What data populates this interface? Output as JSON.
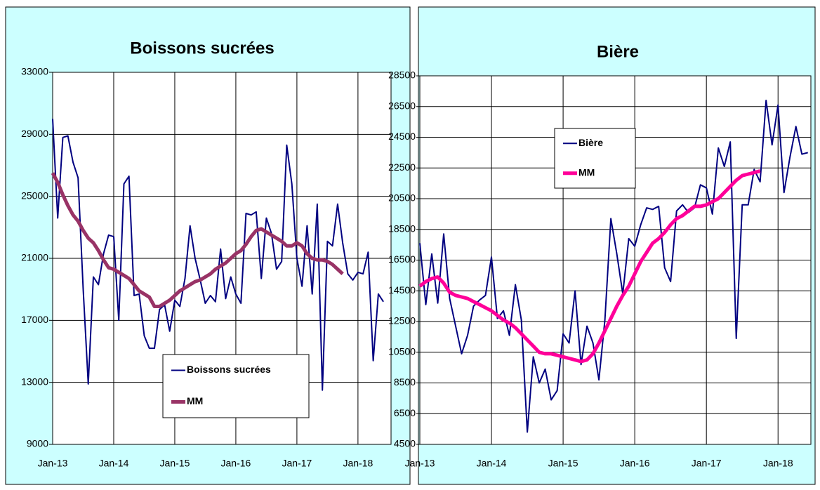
{
  "chart_data": [
    {
      "type": "line",
      "title": "Boissons sucrées",
      "categories": [
        "Jan-13",
        null,
        null,
        null,
        null,
        null,
        null,
        null,
        null,
        null,
        null,
        null,
        "Jan-14",
        null,
        null,
        null,
        null,
        null,
        null,
        null,
        null,
        null,
        null,
        null,
        "Jan-15",
        null,
        null,
        null,
        null,
        null,
        null,
        null,
        null,
        null,
        null,
        null,
        "Jan-16",
        null,
        null,
        null,
        null,
        null,
        null,
        null,
        null,
        null,
        null,
        null,
        "Jan-17",
        null,
        null,
        null,
        null,
        null,
        null,
        null,
        null,
        null,
        null,
        null,
        "Jan-18",
        null,
        null,
        null,
        null,
        null
      ],
      "series": [
        {
          "name": "Boissons sucrées",
          "color": "#000080",
          "values": [
            30000,
            23600,
            28800,
            28900,
            27200,
            26200,
            19000,
            12900,
            19800,
            19300,
            21300,
            22500,
            22400,
            17000,
            25800,
            26300,
            18600,
            18700,
            16000,
            15200,
            15200,
            17700,
            18000,
            16300,
            18300,
            17900,
            19700,
            23100,
            21000,
            19600,
            18100,
            18600,
            18200,
            21600,
            18400,
            19800,
            18700,
            18100,
            23900,
            23800,
            24000,
            19700,
            23600,
            22600,
            20300,
            20800,
            28300,
            25800,
            21000,
            19200,
            23100,
            18700,
            24500,
            12500,
            22100,
            21800,
            24500,
            22000,
            20000,
            19600,
            20100,
            20000,
            21400,
            14400,
            18700,
            18200
          ]
        },
        {
          "name": "MM",
          "color": "#993366",
          "values": [
            26500,
            25900,
            25100,
            24400,
            23800,
            23400,
            22800,
            22300,
            22000,
            21500,
            20900,
            20400,
            20300,
            20100,
            19900,
            19700,
            19300,
            18900,
            18700,
            18500,
            17900,
            17900,
            18100,
            18300,
            18600,
            18900,
            19100,
            19300,
            19500,
            19600,
            19800,
            20000,
            20300,
            20500,
            20700,
            21000,
            21300,
            21500,
            21900,
            22400,
            22800,
            22900,
            22700,
            22500,
            22300,
            22100,
            21800,
            21800,
            22000,
            21800,
            21300,
            21000,
            20900,
            20900,
            20800,
            20600,
            20300,
            20000,
            null,
            null,
            null,
            null,
            null,
            null,
            null,
            null
          ]
        }
      ],
      "ylim": [
        9000,
        33000
      ],
      "yticks": [
        9000,
        13000,
        17000,
        21000,
        25000,
        29000,
        33000
      ],
      "grid": true,
      "legend": "lower center"
    },
    {
      "type": "line",
      "title": "Bière",
      "categories": [
        "Jan-13",
        null,
        null,
        null,
        null,
        null,
        null,
        null,
        null,
        null,
        null,
        null,
        "Jan-14",
        null,
        null,
        null,
        null,
        null,
        null,
        null,
        null,
        null,
        null,
        null,
        "Jan-15",
        null,
        null,
        null,
        null,
        null,
        null,
        null,
        null,
        null,
        null,
        null,
        "Jan-16",
        null,
        null,
        null,
        null,
        null,
        null,
        null,
        null,
        null,
        null,
        null,
        "Jan-17",
        null,
        null,
        null,
        null,
        null,
        null,
        null,
        null,
        null,
        null,
        null,
        "Jan-18",
        null,
        null,
        null,
        null,
        null
      ],
      "series": [
        {
          "name": "Bière",
          "color": "#000080",
          "values": [
            17600,
            13600,
            16900,
            13700,
            18200,
            14000,
            12200,
            10400,
            11600,
            13500,
            13900,
            14200,
            16700,
            12700,
            13200,
            11600,
            14900,
            12600,
            5300,
            10200,
            8500,
            9400,
            7400,
            8000,
            11700,
            11100,
            14500,
            9700,
            12200,
            11100,
            8700,
            12600,
            19200,
            16900,
            14300,
            17900,
            17400,
            18800,
            19900,
            19800,
            20000,
            16000,
            15100,
            19700,
            20100,
            19600,
            19900,
            21400,
            21200,
            19500,
            23800,
            22600,
            24200,
            11400,
            20100,
            20100,
            22400,
            21600,
            26900,
            24000,
            26600,
            20900,
            23200,
            25200,
            23400,
            23500
          ]
        },
        {
          "name": "MM",
          "color": "#ff0099",
          "values": [
            14800,
            15100,
            15300,
            15400,
            15000,
            14400,
            14200,
            14100,
            14000,
            13800,
            13600,
            13400,
            13200,
            12900,
            12600,
            12400,
            12100,
            11700,
            11300,
            10900,
            10500,
            10400,
            10400,
            10300,
            10200,
            10100,
            10000,
            9900,
            10000,
            10400,
            11100,
            11900,
            12700,
            13500,
            14200,
            14800,
            15600,
            16400,
            17000,
            17600,
            17900,
            18300,
            18800,
            19200,
            19400,
            19700,
            20000,
            20000,
            20100,
            20300,
            20500,
            20900,
            21300,
            21700,
            22000,
            22100,
            22200,
            22300,
            null,
            null,
            null,
            null,
            null,
            null,
            null,
            null
          ]
        }
      ],
      "ylim": [
        4500,
        28500
      ],
      "yticks": [
        4500,
        6500,
        8500,
        10500,
        12500,
        14500,
        16500,
        18500,
        20500,
        22500,
        24500,
        26500,
        28500
      ],
      "grid": true,
      "legend": "upper left"
    }
  ]
}
